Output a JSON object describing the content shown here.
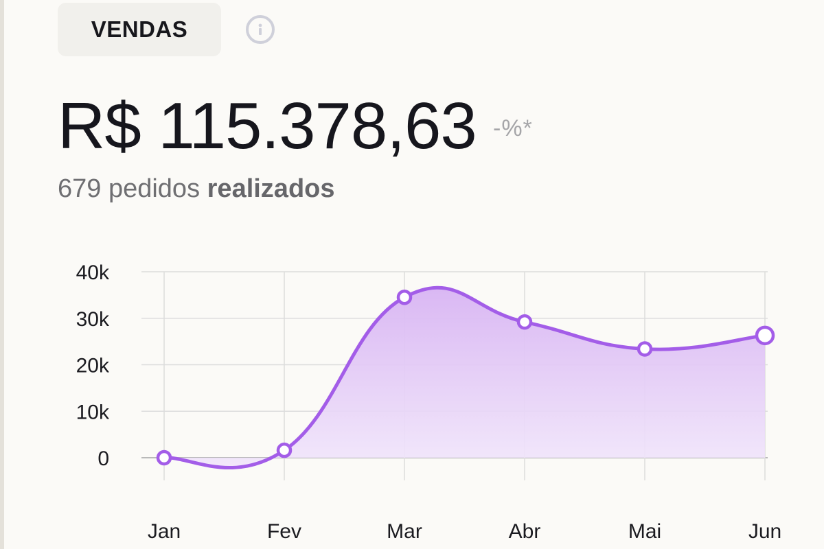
{
  "card": {
    "tag_label": "VENDAS",
    "amount": "R$ 115.378,63",
    "change": "-%*",
    "orders_count": "679 pedidos",
    "orders_suffix": "realizados"
  },
  "colors": {
    "line": "#a35de8",
    "fill_top": "#d8b4f3",
    "fill_bottom": "#f1e6fb",
    "grid": "#dcdcdc"
  },
  "chart_data": {
    "type": "area",
    "categories": [
      "Jan",
      "Fev",
      "Mar",
      "Abr",
      "Mai",
      "Jun"
    ],
    "values": [
      0,
      1600,
      34500,
      29200,
      23400,
      26300
    ],
    "ylim": [
      0,
      40000
    ],
    "yticks": [
      0,
      10000,
      20000,
      30000,
      40000
    ],
    "ytick_labels": [
      "0",
      "10k",
      "20k",
      "30k",
      "40k"
    ],
    "grid": true,
    "title": "",
    "xlabel": "",
    "ylabel": ""
  }
}
